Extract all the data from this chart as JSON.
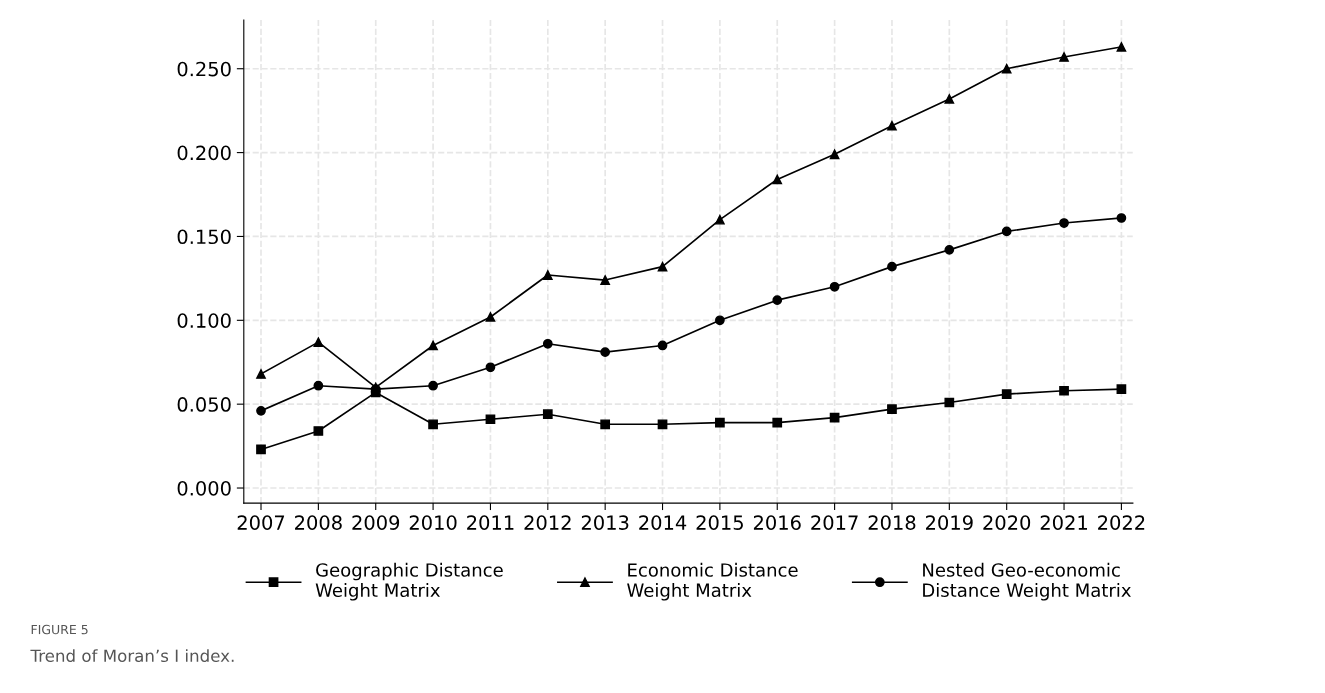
{
  "chart_data": {
    "type": "line",
    "categories": [
      "2007",
      "2008",
      "2009",
      "2010",
      "2011",
      "2012",
      "2013",
      "2014",
      "2015",
      "2016",
      "2017",
      "2018",
      "2019",
      "2020",
      "2021",
      "2022"
    ],
    "series": [
      {
        "name": "Geographic Distance\nWeight Matrix",
        "color": "#000000",
        "marker": "square",
        "values": [
          0.023,
          0.034,
          0.057,
          0.038,
          0.041,
          0.044,
          0.038,
          0.038,
          0.039,
          0.039,
          0.042,
          0.047,
          0.051,
          0.056,
          0.058,
          0.059
        ]
      },
      {
        "name": "Economic Distance\nWeight Matrix",
        "color": "#000000",
        "marker": "triangle",
        "values": [
          0.068,
          0.087,
          0.06,
          0.085,
          0.102,
          0.127,
          0.124,
          0.132,
          0.16,
          0.184,
          0.199,
          0.216,
          0.232,
          0.25,
          0.257,
          0.263
        ]
      },
      {
        "name": "Nested Geo-economic\nDistance Weight Matrix",
        "color": "#000000",
        "marker": "circle",
        "values": [
          0.046,
          0.061,
          0.059,
          0.061,
          0.072,
          0.086,
          0.081,
          0.085,
          0.1,
          0.112,
          0.12,
          0.132,
          0.142,
          0.153,
          0.158,
          0.161
        ]
      }
    ],
    "ylim": [
      -0.009,
      0.279
    ],
    "yticks": [
      {
        "value": 0,
        "label": "0.000"
      },
      {
        "value": 0.05,
        "label": "0.050"
      },
      {
        "value": 0.1,
        "label": "0.100"
      },
      {
        "value": 0.15,
        "label": "0.150"
      },
      {
        "value": 0.2,
        "label": "0.200"
      },
      {
        "value": 0.25,
        "label": "0.250"
      }
    ],
    "grid": true,
    "legend": "bottom",
    "line_style": "solid",
    "annotations": [
      "FIGURE 5",
      "Trend of Moran’s I index."
    ]
  }
}
